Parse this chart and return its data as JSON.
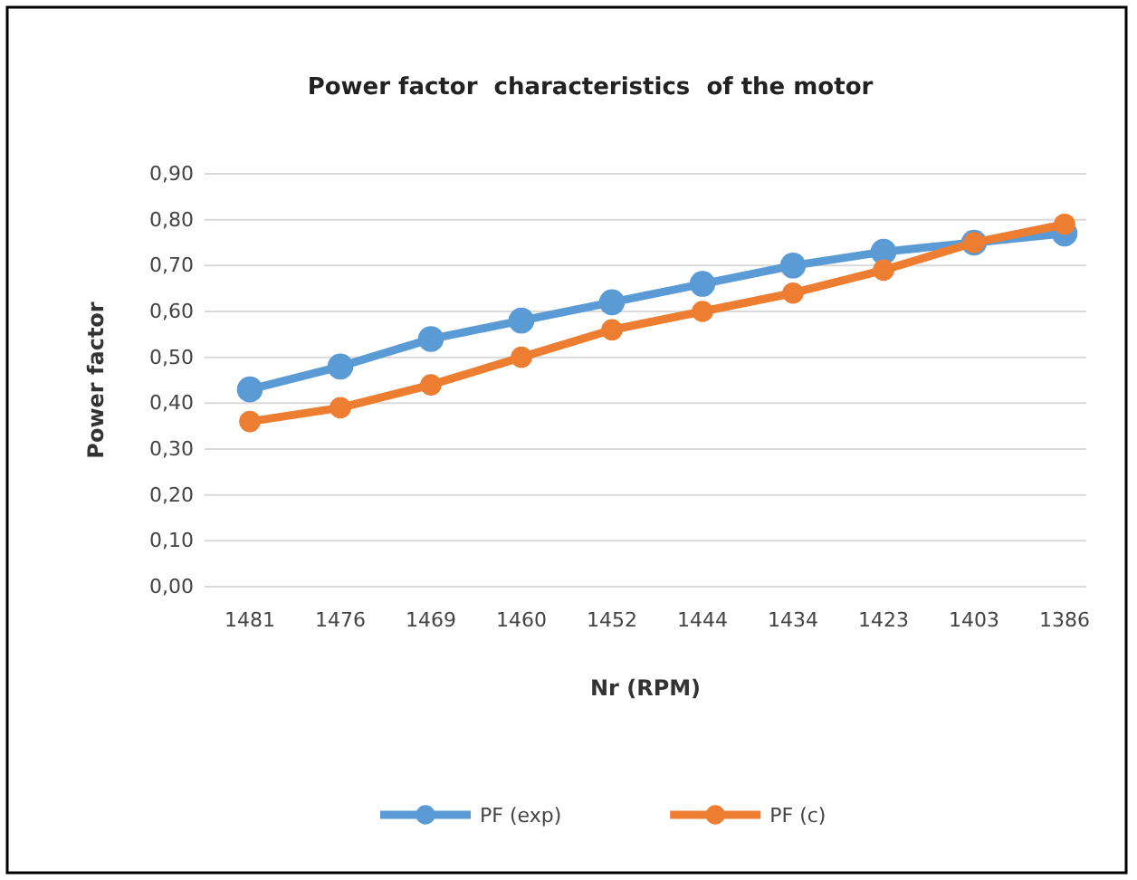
{
  "chart_data": {
    "type": "line",
    "title": "Power factor  characteristics  of the motor",
    "xlabel": "Nr (RPM)",
    "ylabel": "Power factor",
    "categories": [
      "1481",
      "1476",
      "1469",
      "1460",
      "1452",
      "1444",
      "1434",
      "1423",
      "1403",
      "1386"
    ],
    "series": [
      {
        "name": "PF (exp)",
        "color": "#5b9bd5",
        "values": [
          0.43,
          0.48,
          0.54,
          0.58,
          0.62,
          0.66,
          0.7,
          0.73,
          0.75,
          0.77
        ]
      },
      {
        "name": "PF (c)",
        "color": "#ed7d31",
        "values": [
          0.36,
          0.39,
          0.44,
          0.5,
          0.56,
          0.6,
          0.64,
          0.69,
          0.75,
          0.79
        ]
      }
    ],
    "ylim": [
      0,
      0.9
    ],
    "yticks": [
      {
        "value": 0,
        "label": "0,00"
      },
      {
        "value": 0.1,
        "label": "0,10"
      },
      {
        "value": 0.2,
        "label": "0,20"
      },
      {
        "value": 0.3,
        "label": "0,30"
      },
      {
        "value": 0.4,
        "label": "0,40"
      },
      {
        "value": 0.5,
        "label": "0,50"
      },
      {
        "value": 0.6,
        "label": "0,60"
      },
      {
        "value": 0.7,
        "label": "0,70"
      },
      {
        "value": 0.8,
        "label": "0,80"
      },
      {
        "value": 0.9,
        "label": "0,90"
      }
    ],
    "grid": "y",
    "legend": "bottom",
    "marker": "circle",
    "line_style": "solid"
  }
}
